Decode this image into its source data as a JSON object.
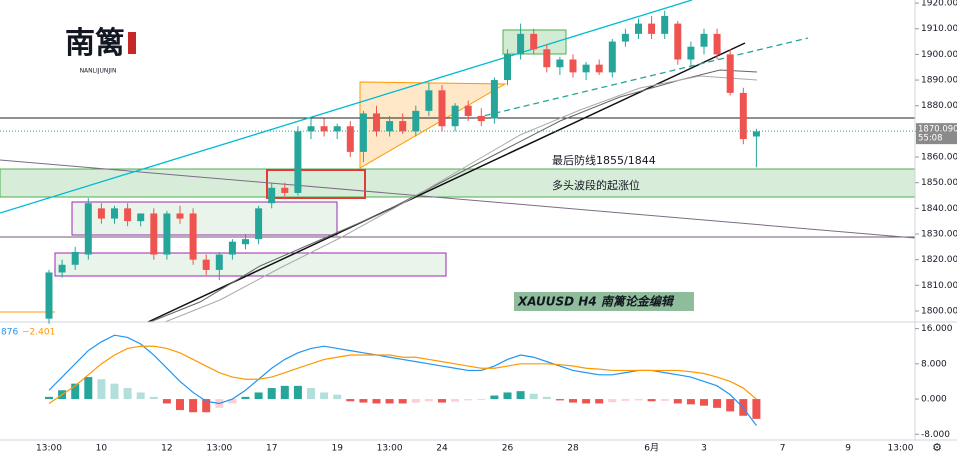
{
  "chart_data": [
    {
      "type": "candlestick",
      "categories": [
        "13:00",
        null,
        null,
        null,
        "10",
        null,
        null,
        null,
        null,
        "12",
        null,
        null,
        null,
        "13:00",
        null,
        null,
        null,
        "17",
        null,
        null,
        null,
        null,
        "19",
        null,
        null,
        null,
        "13:00",
        null,
        null,
        null,
        "24",
        null,
        null,
        null,
        null,
        "26",
        null,
        null,
        null,
        null,
        "28",
        null,
        null,
        null,
        null,
        null,
        "6月",
        null,
        null,
        null,
        "3",
        null,
        null,
        null,
        null,
        null,
        "7",
        null,
        null,
        null,
        null,
        "9",
        null,
        null,
        null,
        "13:00"
      ],
      "open": [
        1797,
        1815,
        1818,
        1822,
        1840,
        1836,
        1840,
        1835,
        1838,
        1822,
        1838,
        1838,
        1820,
        1816,
        1822,
        1826,
        1828,
        1842,
        1848,
        1846,
        1870,
        1872,
        1870,
        1872,
        1862,
        1877,
        1870,
        1874,
        1870,
        1878,
        1886,
        1872,
        1880,
        1876,
        1875,
        1890,
        1900,
        1908,
        1902,
        1895,
        1898,
        1893,
        1896,
        1893,
        1905,
        1908,
        1912,
        1908,
        1912,
        1898,
        1903,
        1908,
        1900,
        1885,
        1868,
        null,
        null,
        null,
        null,
        null,
        null,
        null,
        null,
        null,
        null,
        null
      ],
      "high": [
        1816,
        1820,
        1825,
        1844,
        1842,
        1841,
        1842,
        1838,
        1840,
        1839,
        1841,
        1840,
        1822,
        1823,
        1828,
        1830,
        1841,
        1850,
        1850,
        1872,
        1875,
        1875,
        1873,
        1874,
        1878,
        1880,
        1876,
        1877,
        1880,
        1889,
        1888,
        1881,
        1882,
        1879,
        1891,
        1902,
        1912,
        1910,
        1904,
        1899,
        1900,
        1897,
        1898,
        1906,
        1910,
        1914,
        1915,
        1917,
        1913,
        1905,
        1910,
        1910,
        1902,
        1887,
        1871,
        null,
        null,
        null,
        null,
        null,
        null,
        null,
        null,
        null,
        null,
        null
      ],
      "low": [
        1795,
        1813,
        1816,
        1820,
        1834,
        1834,
        1833,
        1833,
        1820,
        1820,
        1834,
        1818,
        1814,
        1812,
        1820,
        1824,
        1826,
        1840,
        1844,
        1845,
        1867,
        1868,
        1867,
        1860,
        1858,
        1868,
        1868,
        1869,
        1868,
        1876,
        1870,
        1870,
        1874,
        1872,
        1873,
        1888,
        1898,
        1900,
        1893,
        1892,
        1891,
        1890,
        1892,
        1891,
        1903,
        1906,
        1906,
        1906,
        1896,
        1895,
        1900,
        1898,
        1884,
        1865,
        1856,
        null,
        null,
        null,
        null,
        null,
        null,
        null,
        null,
        null,
        null,
        null
      ],
      "close": [
        1815,
        1818,
        1823,
        1842,
        1836,
        1840,
        1835,
        1838,
        1822,
        1838,
        1836,
        1820,
        1816,
        1822,
        1827,
        1828,
        1840,
        1848,
        1846,
        1870,
        1872,
        1870,
        1872,
        1862,
        1877,
        1870,
        1874,
        1870,
        1878,
        1886,
        1872,
        1880,
        1876,
        1874,
        1890,
        1900,
        1908,
        1902,
        1895,
        1898,
        1893,
        1896,
        1893,
        1905,
        1908,
        1912,
        1908,
        1915,
        1898,
        1903,
        1908,
        1900,
        1885,
        1867,
        1870,
        null,
        null,
        null,
        null,
        null,
        null,
        null,
        null,
        null,
        null,
        null
      ],
      "up_color": "#26a69a",
      "down_color": "#ef5350",
      "ylim": [
        1795.7,
        1921.2
      ],
      "yticks": [
        {
          "value": 1800,
          "label": "1800.000"
        },
        {
          "value": 1810,
          "label": "1810.000"
        },
        {
          "value": 1820,
          "label": "1820.000"
        },
        {
          "value": 1830,
          "label": "1830.000"
        },
        {
          "value": 1840,
          "label": "1840.000"
        },
        {
          "value": 1850,
          "label": "1850.000"
        },
        {
          "value": 1860,
          "label": "1860.000"
        },
        {
          "value": 1870,
          "label": "1870.000"
        },
        {
          "value": 1880,
          "label": "1880.000"
        },
        {
          "value": 1890,
          "label": "1890.000"
        },
        {
          "value": 1900,
          "label": "1900.000"
        },
        {
          "value": 1910,
          "label": "1910.000"
        },
        {
          "value": 1920,
          "label": "1920.000"
        }
      ],
      "last_price": {
        "value": 1870.09,
        "label": "1870.090",
        "countdown": "55:08"
      },
      "annotations": [
        "最后防线1855/1844",
        "多头波段的起涨位",
        "XAUUSD  H4  南篱论金编辑"
      ],
      "logo": {
        "title": "南篱",
        "subtitle": "NANLIJUNJIN"
      }
    },
    {
      "type": "macd",
      "legend_values": [
        "876",
        "−2.401"
      ],
      "macd": [
        2,
        5,
        8,
        11,
        13,
        14.5,
        14,
        12.5,
        10,
        7,
        4,
        1.5,
        -0.5,
        -1,
        0,
        2,
        4.5,
        7,
        9,
        10.5,
        11.5,
        12,
        11.5,
        11,
        10.5,
        10,
        9.5,
        9,
        8.5,
        8,
        7.5,
        7,
        6.5,
        6.5,
        7.5,
        9,
        10,
        9.5,
        8.5,
        7.5,
        6.5,
        6,
        5.5,
        5.5,
        6,
        6.5,
        6.5,
        6,
        5.5,
        5,
        4,
        3,
        1,
        -2,
        -6
      ],
      "signal": [
        -1,
        1,
        3,
        5.5,
        8,
        10,
        11.5,
        12,
        12,
        11.5,
        10.5,
        9,
        7.5,
        6,
        5,
        4.5,
        4.5,
        5,
        6,
        7,
        8,
        9,
        9.5,
        10,
        10,
        10,
        10,
        9.5,
        9.5,
        9,
        8.5,
        8,
        7.5,
        7,
        7,
        7.5,
        8,
        8,
        8,
        7.8,
        7.5,
        7,
        6.8,
        6.5,
        6.5,
        6.5,
        6.5,
        6.5,
        6.5,
        6.2,
        5.8,
        5,
        4,
        2.5,
        0
      ],
      "histogram": [
        0.5,
        2,
        3.5,
        5,
        4.5,
        3.5,
        2.5,
        1.5,
        0.5,
        -1,
        -2.5,
        -3,
        -3,
        -2,
        -1,
        0.5,
        1.5,
        2.5,
        3,
        3,
        2.5,
        1.5,
        1,
        -0.5,
        -0.8,
        -1,
        -1,
        -1,
        -0.8,
        -0.5,
        -0.8,
        -0.6,
        -0.3,
        -0.2,
        0.8,
        1.5,
        1.8,
        1.2,
        0.5,
        -0.3,
        -0.8,
        -1,
        -1,
        -0.7,
        -0.4,
        -0.3,
        -0.5,
        -0.4,
        -1,
        -1.2,
        -1.5,
        -2,
        -2.8,
        -3.8,
        -4.5
      ],
      "macd_color": "#2196f3",
      "signal_color": "#ff9800",
      "ylim": [
        -9.3,
        17.5
      ],
      "yticks": [
        {
          "value": 16,
          "label": "16.000"
        },
        {
          "value": 8,
          "label": "8.000"
        },
        {
          "value": 0,
          "label": "0.000"
        },
        {
          "value": -8,
          "label": "-8.000"
        }
      ]
    }
  ]
}
